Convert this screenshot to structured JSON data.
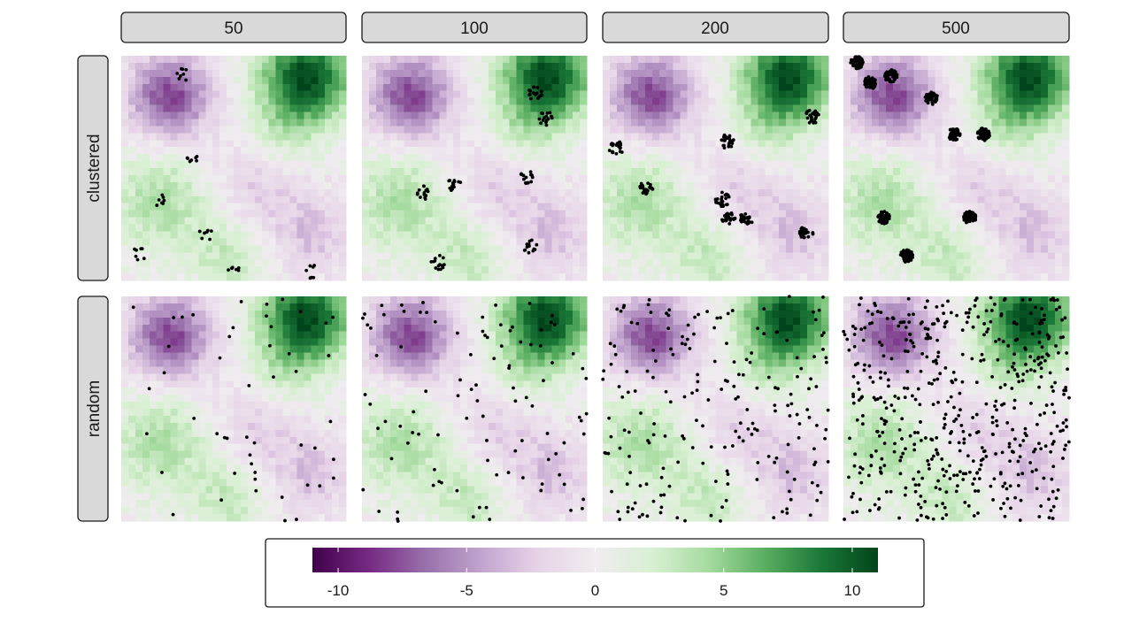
{
  "chart_data": {
    "type": "scatter",
    "title": "",
    "xlabel": "",
    "ylabel": "",
    "grid": false,
    "facet_columns": [
      "50",
      "100",
      "200",
      "500"
    ],
    "facet_rows": [
      "clustered",
      "random"
    ],
    "x_range": [
      0,
      1
    ],
    "y_range": [
      0,
      1
    ],
    "point_color": "#000000",
    "background_field": {
      "type": "heatmap",
      "description_colors": {
        "low": "#40004b",
        "mid": "#f0ecf0",
        "high": "#00441b"
      },
      "peaks": [
        {
          "x": 0.82,
          "y": 0.9,
          "value": 11,
          "sigma": 0.14
        },
        {
          "x": 0.22,
          "y": 0.82,
          "value": -8,
          "sigma": 0.13
        },
        {
          "x": 0.18,
          "y": 0.35,
          "value": 4,
          "sigma": 0.16
        },
        {
          "x": 0.62,
          "y": 0.45,
          "value": -3,
          "sigma": 0.15
        },
        {
          "x": 0.85,
          "y": 0.2,
          "value": -3,
          "sigma": 0.12
        },
        {
          "x": 0.48,
          "y": 0.1,
          "value": 3,
          "sigma": 0.12
        },
        {
          "x": 0.7,
          "y": 0.62,
          "value": 3,
          "sigma": 0.12
        }
      ]
    },
    "clusters": {
      "50": [
        [
          0.28,
          0.92
        ],
        [
          0.32,
          0.55
        ],
        [
          0.17,
          0.36
        ],
        [
          0.08,
          0.12
        ],
        [
          0.38,
          0.21
        ],
        [
          0.5,
          0.05
        ],
        [
          0.85,
          0.04
        ]
      ],
      "100": [
        [
          0.77,
          0.83
        ],
        [
          0.82,
          0.72
        ],
        [
          0.27,
          0.39
        ],
        [
          0.41,
          0.43
        ],
        [
          0.73,
          0.46
        ],
        [
          0.75,
          0.15
        ],
        [
          0.34,
          0.08
        ]
      ],
      "200": [
        [
          0.06,
          0.59
        ],
        [
          0.19,
          0.41
        ],
        [
          0.55,
          0.62
        ],
        [
          0.93,
          0.73
        ],
        [
          0.53,
          0.36
        ],
        [
          0.64,
          0.28
        ],
        [
          0.56,
          0.27
        ],
        [
          0.9,
          0.21
        ]
      ],
      "500": [
        [
          0.06,
          0.97
        ],
        [
          0.21,
          0.91
        ],
        [
          0.12,
          0.88
        ],
        [
          0.39,
          0.81
        ],
        [
          0.49,
          0.65
        ],
        [
          0.62,
          0.65
        ],
        [
          0.18,
          0.28
        ],
        [
          0.56,
          0.28
        ],
        [
          0.28,
          0.11
        ]
      ]
    },
    "facet_point_counts": {
      "50": 50,
      "100": 100,
      "200": 200,
      "500": 500
    }
  },
  "legend": {
    "position": "bottom",
    "ticks": [
      "-10",
      "-5",
      "0",
      "5",
      "10"
    ],
    "tick_values": [
      -10,
      -5,
      0,
      5,
      10
    ],
    "range": [
      -11,
      11
    ],
    "colors": [
      "#40004b",
      "#762a83",
      "#9970ab",
      "#c2a5cf",
      "#e7d4e8",
      "#f0ecf0",
      "#d9f0d3",
      "#a6dba0",
      "#5aae61",
      "#1b7837",
      "#00441b"
    ]
  }
}
